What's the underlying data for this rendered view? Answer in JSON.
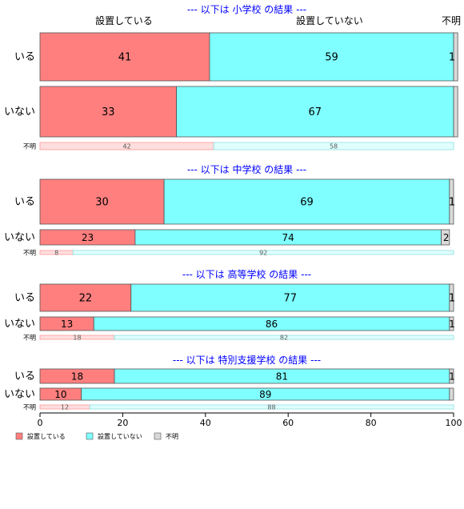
{
  "chart_data": {
    "type": "bar",
    "orientation": "horizontal",
    "stacked": true,
    "percent_scale": true,
    "xlim": [
      0,
      100
    ],
    "x_ticks": [
      "0",
      "20",
      "40",
      "60",
      "80",
      "100"
    ],
    "grid": false,
    "legend_position": "bottom-left",
    "column_labels": [
      "設置している",
      "設置していない",
      "不明"
    ],
    "series": [
      {
        "name": "設置している",
        "color": "#ff7f7f"
      },
      {
        "name": "設置していない",
        "color": "#7fffff"
      },
      {
        "name": "不明",
        "color": "#d9d9d9"
      }
    ],
    "panels": [
      {
        "title": "--- 以下は 小学校 の結果 ---",
        "rows": [
          {
            "label": "いる",
            "values": [
              41,
              59,
              1
            ],
            "labels": [
              "41",
              "59",
              "1"
            ],
            "size": "large"
          },
          {
            "label": "いない",
            "values": [
              33,
              67,
              1
            ],
            "labels": [
              "33",
              "67",
              ""
            ],
            "size": "large"
          },
          {
            "label": "不明",
            "values": [
              42,
              58,
              0
            ],
            "labels": [
              "42",
              "58",
              ""
            ],
            "size": "small"
          }
        ]
      },
      {
        "title": "--- 以下は 中学校 の結果 ---",
        "rows": [
          {
            "label": "いる",
            "values": [
              30,
              69,
              1
            ],
            "labels": [
              "30",
              "69",
              "1"
            ],
            "size": "large"
          },
          {
            "label": "いない",
            "values": [
              23,
              74,
              2
            ],
            "labels": [
              "23",
              "74",
              "2"
            ],
            "size": "medium"
          },
          {
            "label": "不明",
            "values": [
              8,
              92,
              0
            ],
            "labels": [
              "8",
              "92",
              ""
            ],
            "size": "small"
          }
        ]
      },
      {
        "title": "--- 以下は 高等学校 の結果 ---",
        "rows": [
          {
            "label": "いる",
            "values": [
              22,
              77,
              1
            ],
            "labels": [
              "22",
              "77",
              "1"
            ],
            "size": "large"
          },
          {
            "label": "いない",
            "values": [
              13,
              86,
              1
            ],
            "labels": [
              "13",
              "86",
              "1"
            ],
            "size": "medium"
          },
          {
            "label": "不明",
            "values": [
              18,
              82,
              0
            ],
            "labels": [
              "18",
              "82",
              ""
            ],
            "size": "small"
          }
        ]
      },
      {
        "title": "--- 以下は 特別支援学校 の結果 ---",
        "rows": [
          {
            "label": "いる",
            "values": [
              18,
              81,
              1
            ],
            "labels": [
              "18",
              "81",
              "1"
            ],
            "size": "medium"
          },
          {
            "label": "いない",
            "values": [
              10,
              89,
              1
            ],
            "labels": [
              "10",
              "89",
              ""
            ],
            "size": "medium"
          },
          {
            "label": "不明",
            "values": [
              12,
              88,
              0
            ],
            "labels": [
              "12",
              "88",
              ""
            ],
            "size": "small"
          }
        ]
      }
    ]
  }
}
